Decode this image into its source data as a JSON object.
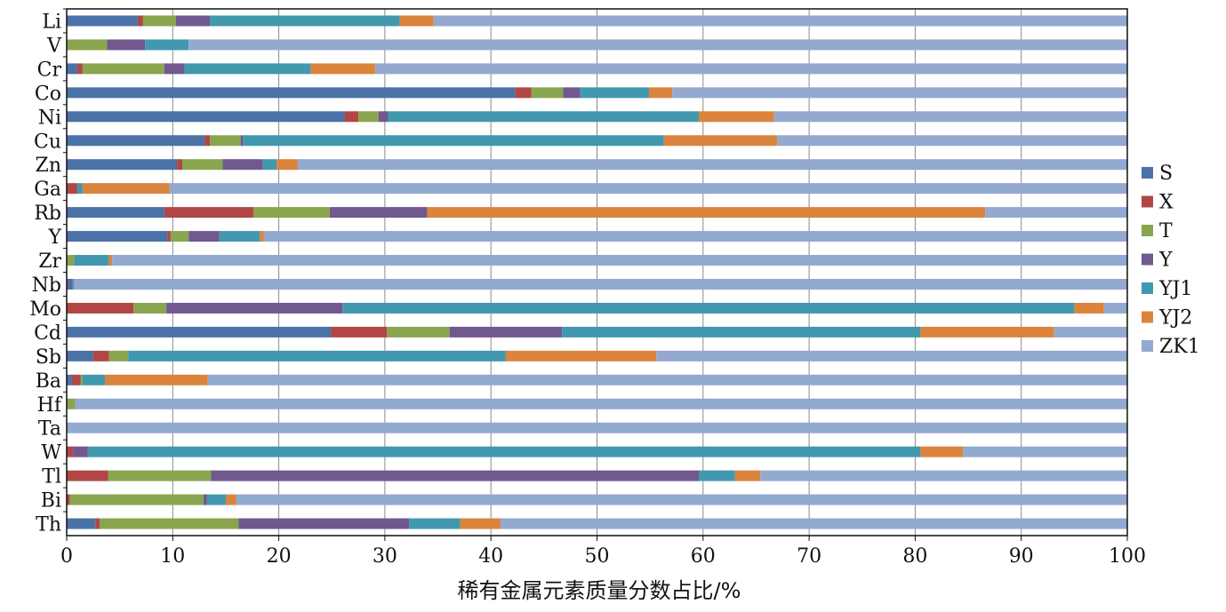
{
  "chart_data": {
    "type": "bar",
    "orientation": "horizontal",
    "stacked": true,
    "xlabel": "稀有金属元素质量分数占比/%",
    "ylabel": "",
    "xlim": [
      0,
      100
    ],
    "xticks": [
      0,
      10,
      20,
      30,
      40,
      50,
      60,
      70,
      80,
      90,
      100
    ],
    "grid": "vertical",
    "legend_position": "right",
    "categories": [
      "Li",
      "V",
      "Cr",
      "Co",
      "Ni",
      "Cu",
      "Zn",
      "Ga",
      "Rb",
      "Y",
      "Zr",
      "Nb",
      "Mo",
      "Cd",
      "Sb",
      "Ba",
      "Hf",
      "Ta",
      "W",
      "Tl",
      "Bi",
      "Th"
    ],
    "series": [
      {
        "name": "S",
        "color": "#4a72a8",
        "values": [
          6.7,
          0.0,
          1.0,
          42.3,
          26.2,
          13.0,
          10.4,
          0.0,
          9.2,
          9.5,
          0.0,
          0.3,
          0.0,
          24.9,
          2.5,
          0.5,
          0.0,
          0.0,
          0.0,
          0.0,
          0.0,
          2.7
        ]
      },
      {
        "name": "X",
        "color": "#b04745",
        "values": [
          0.5,
          0.0,
          0.5,
          1.5,
          1.3,
          0.5,
          0.5,
          1.0,
          8.4,
          0.3,
          0.0,
          0.0,
          6.3,
          5.3,
          1.5,
          0.8,
          0.0,
          0.0,
          0.6,
          3.9,
          0.3,
          0.4
        ]
      },
      {
        "name": "T",
        "color": "#89a54e",
        "values": [
          3.1,
          3.8,
          7.7,
          3.0,
          1.9,
          2.9,
          3.8,
          0.0,
          7.2,
          1.7,
          0.7,
          0.0,
          3.1,
          5.9,
          1.8,
          0.2,
          0.8,
          0.0,
          0.0,
          9.7,
          12.6,
          13.1
        ]
      },
      {
        "name": "Y",
        "color": "#71588f",
        "values": [
          3.2,
          3.6,
          1.9,
          1.6,
          0.9,
          0.2,
          3.8,
          0.0,
          9.2,
          2.9,
          0.0,
          0.2,
          16.6,
          10.6,
          0.0,
          0.0,
          0.0,
          0.0,
          1.4,
          46.0,
          0.3,
          16.1
        ]
      },
      {
        "name": "YJ1",
        "color": "#4198af",
        "values": [
          17.9,
          4.1,
          11.9,
          6.5,
          29.3,
          39.7,
          1.3,
          0.5,
          0.0,
          3.8,
          3.3,
          0.2,
          69.0,
          33.8,
          35.6,
          2.1,
          0.0,
          0.0,
          78.5,
          3.4,
          1.8,
          4.8
        ]
      },
      {
        "name": "YJ2",
        "color": "#db843d",
        "values": [
          3.2,
          0.0,
          6.1,
          2.2,
          7.1,
          10.7,
          2.0,
          8.2,
          52.6,
          0.4,
          0.3,
          0.0,
          2.8,
          12.6,
          14.2,
          9.7,
          0.0,
          0.0,
          4.0,
          2.4,
          1.0,
          3.8
        ]
      },
      {
        "name": "ZK1",
        "color": "#93a9cf",
        "values": [
          65.4,
          88.5,
          70.9,
          42.9,
          33.3,
          33.0,
          78.2,
          90.3,
          13.4,
          81.4,
          95.7,
          99.3,
          2.2,
          6.9,
          44.4,
          86.7,
          99.2,
          100.0,
          15.5,
          34.6,
          84.0,
          59.1
        ]
      }
    ]
  }
}
